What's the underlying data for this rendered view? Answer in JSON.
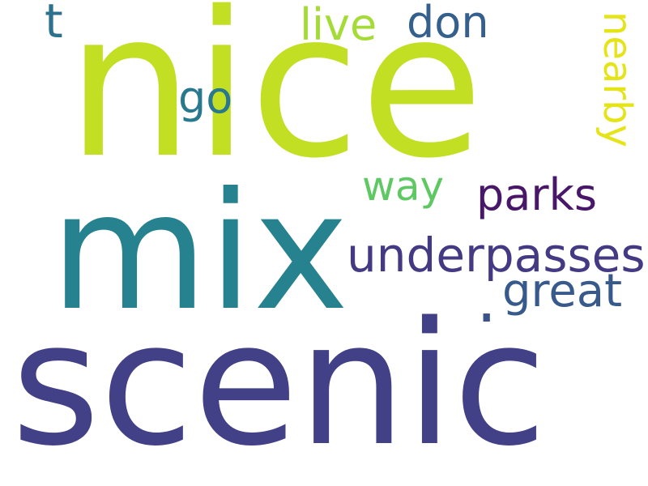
{
  "background": "#ffffff",
  "words": [
    {
      "id": "nice",
      "text": "nice",
      "color": "#c2df23",
      "orientation": "horizontal"
    },
    {
      "id": "scenic",
      "text": "scenic",
      "color": "#424086",
      "orientation": "horizontal"
    },
    {
      "id": "mix",
      "text": "mix",
      "color": "#26828e",
      "orientation": "horizontal"
    },
    {
      "id": "underpasses",
      "text": "underpasses",
      "color": "#443983",
      "orientation": "horizontal"
    },
    {
      "id": "parks",
      "text": "parks",
      "color": "#481769",
      "orientation": "horizontal"
    },
    {
      "id": "great",
      "text": "great",
      "color": "#38598c",
      "orientation": "horizontal"
    },
    {
      "id": "way",
      "text": "way",
      "color": "#5ec962",
      "orientation": "horizontal"
    },
    {
      "id": "go",
      "text": "go",
      "color": "#2a788e",
      "orientation": "horizontal"
    },
    {
      "id": "live",
      "text": "live",
      "color": "#a5db36",
      "orientation": "horizontal"
    },
    {
      "id": "don",
      "text": "don",
      "color": "#355f8d",
      "orientation": "horizontal"
    },
    {
      "id": "t",
      "text": "t",
      "color": "#2c728e",
      "orientation": "horizontal"
    },
    {
      "id": "nearby",
      "text": "nearby",
      "color": "#e5e419",
      "orientation": "vertical"
    },
    {
      "id": "dot",
      "text": ".",
      "color": "#3b528b",
      "orientation": "horizontal"
    }
  ]
}
